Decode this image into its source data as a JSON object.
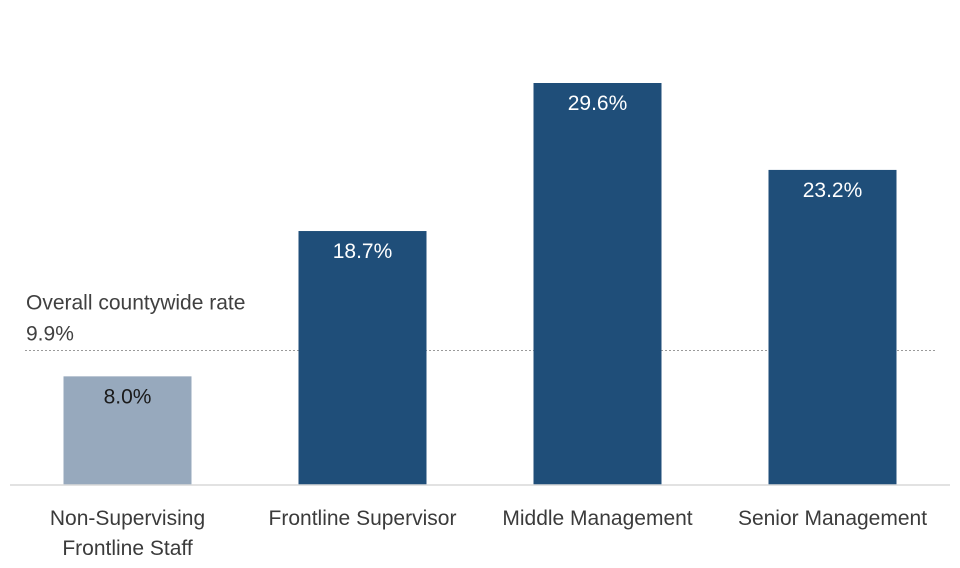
{
  "chart_data": {
    "type": "bar",
    "title": "",
    "xlabel": "",
    "ylabel": "",
    "ylim": [
      0,
      32
    ],
    "grid": false,
    "categories": [
      [
        "Non-Supervising",
        "Frontline Staff"
      ],
      [
        "Frontline Supervisor"
      ],
      [
        "Middle Management"
      ],
      [
        "Senior Management"
      ]
    ],
    "values": [
      8.0,
      18.7,
      29.6,
      23.2
    ],
    "value_labels": [
      "8.0%",
      "18.7%",
      "29.6%",
      "23.2%"
    ],
    "bar_colors": [
      "#97a9bd",
      "#1f4e79",
      "#1f4e79",
      "#1f4e79"
    ],
    "label_colors": [
      "#1a1a1a",
      "#ffffff",
      "#ffffff",
      "#ffffff"
    ],
    "reference_line": {
      "value": 9.9,
      "label": "Overall countywide rate",
      "value_label": "9.9%",
      "color": "#9a9a9a"
    },
    "axis_color": "#d9d9d9"
  }
}
